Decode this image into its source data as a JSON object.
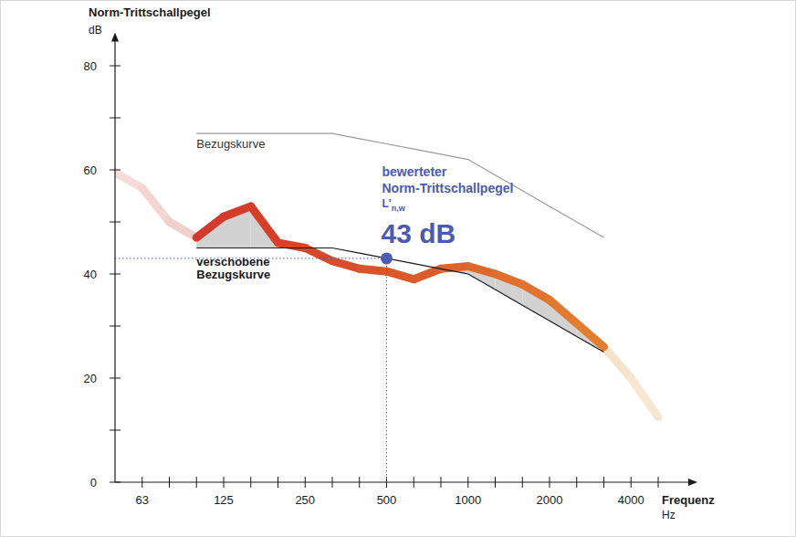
{
  "chart_data": {
    "type": "line",
    "y_label": "Norm-Trittschallpegel",
    "y_unit": "dB",
    "x_label": "Frequenz",
    "x_unit": "Hz",
    "categories": [
      null,
      "63",
      null,
      null,
      "125",
      null,
      null,
      "250",
      null,
      null,
      "500",
      null,
      null,
      "1000",
      null,
      null,
      "2000",
      null,
      null,
      "4000",
      null
    ],
    "values": [
      59.5,
      56.5,
      50,
      47,
      51,
      53,
      46,
      45,
      42.5,
      41,
      40.5,
      39,
      41,
      41.5,
      40,
      38,
      35,
      30.5,
      26,
      20,
      12.5
    ],
    "colors": [
      "#f6dcd8",
      "#f3d6d1",
      "#f0d0cb",
      "#d33a2b",
      "#d43c2a",
      "#d53f2a",
      "#d6432a",
      "#d7482a",
      "#d84e2b",
      "#da532b",
      "#db582b",
      "#dc5d2c",
      "#de632c",
      "#df682d",
      "#e06e2d",
      "#e1732e",
      "#e2792e",
      "#e37e2f",
      "#f6e3cc",
      "#f7e6d0",
      "#f7e6d0"
    ],
    "series": [
      {
        "name": "Bezugskurve",
        "color": "#9a9a9a",
        "values": [
          null,
          null,
          null,
          67,
          67,
          67,
          67,
          67,
          67,
          66,
          65,
          64,
          63,
          62,
          59,
          56,
          53,
          50,
          47,
          null,
          null
        ]
      },
      {
        "name": "verschobene Bezugskurve",
        "color": "#1a1a1a",
        "values": [
          null,
          null,
          null,
          45,
          45,
          45,
          45,
          45,
          45,
          44,
          43,
          42,
          41,
          40,
          37,
          34,
          31,
          28,
          25,
          null,
          null
        ]
      }
    ],
    "ylim": [
      0,
      85
    ],
    "yticks": [
      0,
      {
        "value": 10,
        "label": null
      },
      20,
      {
        "value": 30,
        "label": null
      },
      40,
      {
        "value": 50,
        "label": null
      },
      60,
      {
        "value": 70,
        "label": null
      },
      80
    ],
    "annotations": [
      {
        "lines": [
          "bewerteter",
          "Norm-Trittschallpegel"
        ],
        "symbol": "L'",
        "subscript": "n,w",
        "value": 43,
        "label": "43 dB",
        "category": "500",
        "color": "#4a5bb0"
      }
    ]
  }
}
